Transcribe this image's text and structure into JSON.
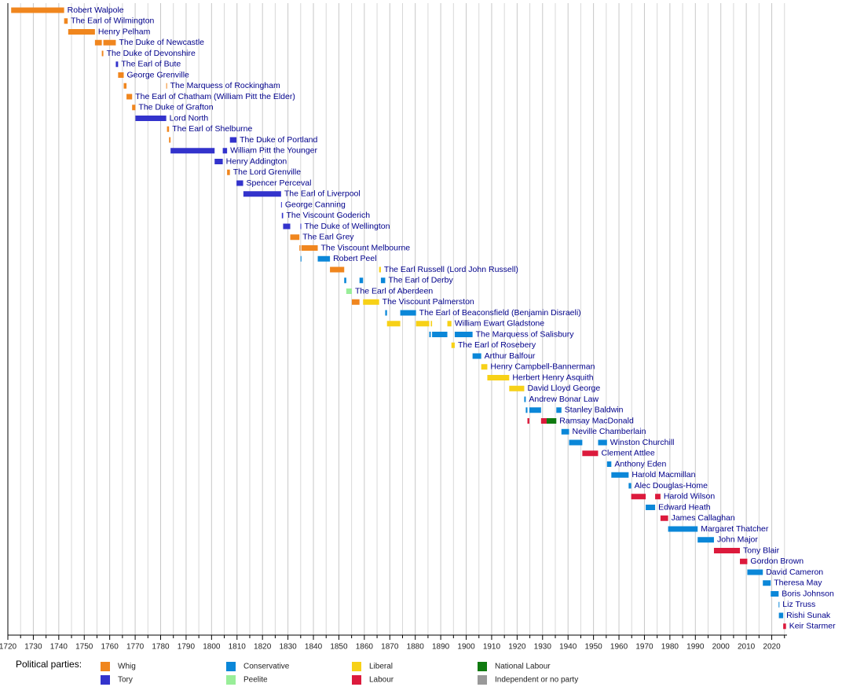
{
  "chart_data": {
    "type": "timeline",
    "xlim": [
      1720,
      2026
    ],
    "xticks": [
      1720,
      1730,
      1740,
      1750,
      1760,
      1770,
      1780,
      1790,
      1800,
      1810,
      1820,
      1830,
      1840,
      1850,
      1860,
      1870,
      1880,
      1890,
      1900,
      1910,
      1920,
      1930,
      1940,
      1950,
      1960,
      1970,
      1980,
      1990,
      2000,
      2010,
      2020
    ],
    "minor_xticks": [
      1725,
      1735,
      1745,
      1755,
      1765,
      1775,
      1785,
      1795,
      1805,
      1815,
      1825,
      1835,
      1845,
      1855,
      1865,
      1875,
      1885,
      1895,
      1905,
      1915,
      1925,
      1935,
      1945,
      1955,
      1965,
      1975,
      1985,
      1995,
      2005,
      2015,
      2025
    ],
    "grid": true,
    "legend_title": "Political parties:",
    "parties": [
      {
        "name": "Whig",
        "color": "#f0861e"
      },
      {
        "name": "Tory",
        "color": "#3333cc"
      },
      {
        "name": "Conservative",
        "color": "#0b87d8"
      },
      {
        "name": "Peelite",
        "color": "#99ee99"
      },
      {
        "name": "Liberal",
        "color": "#f7d117"
      },
      {
        "name": "Labour",
        "color": "#dc1a3c"
      },
      {
        "name": "National Labour",
        "color": "#0f7a0f"
      },
      {
        "name": "Independent or no party",
        "color": "#999999"
      }
    ],
    "series": [
      {
        "name": "Robert Walpole",
        "terms": [
          [
            1721.3,
            1742.1,
            "Whig"
          ]
        ]
      },
      {
        "name": "The Earl of Wilmington",
        "terms": [
          [
            1742.1,
            1743.5,
            "Whig"
          ]
        ]
      },
      {
        "name": "Henry Pelham",
        "terms": [
          [
            1743.7,
            1754.2,
            "Whig"
          ]
        ]
      },
      {
        "name": "The Duke of Newcastle",
        "terms": [
          [
            1754.2,
            1756.9,
            "Whig"
          ],
          [
            1757.5,
            1762.4,
            "Whig"
          ]
        ]
      },
      {
        "name": "The Duke of Devonshire",
        "terms": [
          [
            1756.9,
            1757.5,
            "Whig"
          ]
        ]
      },
      {
        "name": "The Earl of Bute",
        "terms": [
          [
            1762.4,
            1763.3,
            "Tory"
          ]
        ]
      },
      {
        "name": "George Grenville",
        "terms": [
          [
            1763.3,
            1765.5,
            "Whig"
          ]
        ]
      },
      {
        "name": "The Marquess of Rockingham",
        "terms": [
          [
            1765.5,
            1766.6,
            "Whig"
          ],
          [
            1782.2,
            1782.5,
            "Whig"
          ]
        ]
      },
      {
        "name": "The Earl of Chatham (William Pitt the Elder)",
        "terms": [
          [
            1766.6,
            1768.8,
            "Whig"
          ]
        ]
      },
      {
        "name": "The Duke of Grafton",
        "terms": [
          [
            1768.8,
            1770.1,
            "Whig"
          ]
        ]
      },
      {
        "name": "Lord North",
        "terms": [
          [
            1770.1,
            1782.2,
            "Tory"
          ]
        ]
      },
      {
        "name": "The Earl of Shelburne",
        "terms": [
          [
            1782.5,
            1783.3,
            "Whig"
          ]
        ]
      },
      {
        "name": "The Duke of Portland",
        "terms": [
          [
            1783.3,
            1783.9,
            "Whig"
          ],
          [
            1807.2,
            1809.8,
            "Tory"
          ]
        ]
      },
      {
        "name": "William Pitt the Younger",
        "terms": [
          [
            1783.9,
            1801.2,
            "Tory"
          ],
          [
            1804.4,
            1806.1,
            "Tory"
          ]
        ]
      },
      {
        "name": "Henry Addington",
        "terms": [
          [
            1801.2,
            1804.4,
            "Tory"
          ]
        ]
      },
      {
        "name": "The Lord Grenville",
        "terms": [
          [
            1806.1,
            1807.2,
            "Whig"
          ]
        ]
      },
      {
        "name": "Spencer Perceval",
        "terms": [
          [
            1809.8,
            1812.4,
            "Tory"
          ]
        ]
      },
      {
        "name": "The Earl of Liverpool",
        "terms": [
          [
            1812.5,
            1827.3,
            "Tory"
          ]
        ]
      },
      {
        "name": "George Canning",
        "terms": [
          [
            1827.3,
            1827.6,
            "Tory"
          ]
        ]
      },
      {
        "name": "The Viscount Goderich",
        "terms": [
          [
            1827.6,
            1828.1,
            "Tory"
          ]
        ]
      },
      {
        "name": "The Duke of Wellington",
        "terms": [
          [
            1828.1,
            1830.9,
            "Tory"
          ],
          [
            1834.9,
            1835.0,
            "Tory"
          ]
        ]
      },
      {
        "name": "The Earl Grey",
        "terms": [
          [
            1830.9,
            1834.5,
            "Whig"
          ]
        ]
      },
      {
        "name": "The Viscount Melbourne",
        "terms": [
          [
            1834.5,
            1834.9,
            "Whig"
          ],
          [
            1835.3,
            1841.7,
            "Whig"
          ]
        ]
      },
      {
        "name": "Robert Peel",
        "terms": [
          [
            1834.95,
            1835.3,
            "Conservative"
          ],
          [
            1841.7,
            1846.5,
            "Conservative"
          ]
        ]
      },
      {
        "name": "The Earl Russell (Lord John Russell)",
        "terms": [
          [
            1846.5,
            1852.1,
            "Whig"
          ],
          [
            1865.8,
            1866.5,
            "Liberal"
          ]
        ]
      },
      {
        "name": "The Earl of Derby",
        "terms": [
          [
            1852.1,
            1852.9,
            "Conservative"
          ],
          [
            1858.1,
            1859.5,
            "Conservative"
          ],
          [
            1866.5,
            1868.2,
            "Conservative"
          ]
        ]
      },
      {
        "name": "The Earl of Aberdeen",
        "terms": [
          [
            1852.9,
            1855.1,
            "Peelite"
          ]
        ]
      },
      {
        "name": "The Viscount Palmerston",
        "terms": [
          [
            1855.1,
            1858.1,
            "Whig"
          ],
          [
            1859.5,
            1865.8,
            "Liberal"
          ]
        ]
      },
      {
        "name": "The Earl of Beaconsfield (Benjamin Disraeli)",
        "terms": [
          [
            1868.2,
            1868.9,
            "Conservative"
          ],
          [
            1874.1,
            1880.3,
            "Conservative"
          ]
        ]
      },
      {
        "name": "William Ewart Gladstone",
        "terms": [
          [
            1868.9,
            1874.1,
            "Liberal"
          ],
          [
            1880.3,
            1885.5,
            "Liberal"
          ],
          [
            1886.1,
            1886.6,
            "Liberal"
          ],
          [
            1892.6,
            1894.2,
            "Liberal"
          ]
        ]
      },
      {
        "name": "The Marquess of Salisbury",
        "terms": [
          [
            1885.5,
            1886.1,
            "Conservative"
          ],
          [
            1886.6,
            1892.6,
            "Conservative"
          ],
          [
            1895.5,
            1902.5,
            "Conservative"
          ]
        ]
      },
      {
        "name": "The Earl of Rosebery",
        "terms": [
          [
            1894.2,
            1895.5,
            "Liberal"
          ]
        ]
      },
      {
        "name": "Arthur Balfour",
        "terms": [
          [
            1902.5,
            1905.9,
            "Conservative"
          ]
        ]
      },
      {
        "name": "Henry Campbell-Bannerman",
        "terms": [
          [
            1905.9,
            1908.3,
            "Liberal"
          ]
        ]
      },
      {
        "name": "Herbert Henry Asquith",
        "terms": [
          [
            1908.3,
            1916.9,
            "Liberal"
          ]
        ]
      },
      {
        "name": "David Lloyd George",
        "terms": [
          [
            1916.9,
            1922.8,
            "Liberal"
          ]
        ]
      },
      {
        "name": "Andrew Bonar Law",
        "terms": [
          [
            1922.8,
            1923.4,
            "Conservative"
          ]
        ]
      },
      {
        "name": "Stanley Baldwin",
        "terms": [
          [
            1923.4,
            1924.05,
            "Conservative"
          ],
          [
            1924.8,
            1929.4,
            "Conservative"
          ],
          [
            1935.4,
            1937.4,
            "Conservative"
          ]
        ]
      },
      {
        "name": "Ramsay MacDonald",
        "terms": [
          [
            1924.05,
            1924.8,
            "Labour"
          ],
          [
            1929.4,
            1931.6,
            "Labour"
          ],
          [
            1931.6,
            1935.4,
            "National Labour"
          ]
        ]
      },
      {
        "name": "Neville Chamberlain",
        "terms": [
          [
            1937.4,
            1940.4,
            "Conservative"
          ]
        ]
      },
      {
        "name": "Winston Churchill",
        "terms": [
          [
            1940.4,
            1945.6,
            "Conservative"
          ],
          [
            1951.8,
            1955.3,
            "Conservative"
          ]
        ]
      },
      {
        "name": "Clement Attlee",
        "terms": [
          [
            1945.6,
            1951.8,
            "Labour"
          ]
        ]
      },
      {
        "name": "Anthony Eden",
        "terms": [
          [
            1955.3,
            1957.0,
            "Conservative"
          ]
        ]
      },
      {
        "name": "Harold Macmillan",
        "terms": [
          [
            1957.0,
            1963.8,
            "Conservative"
          ]
        ]
      },
      {
        "name": "Alec Douglas-Home",
        "terms": [
          [
            1963.8,
            1964.8,
            "Conservative"
          ]
        ]
      },
      {
        "name": "Harold Wilson",
        "terms": [
          [
            1964.8,
            1970.5,
            "Labour"
          ],
          [
            1974.2,
            1976.3,
            "Labour"
          ]
        ]
      },
      {
        "name": "Edward Heath",
        "terms": [
          [
            1970.5,
            1974.2,
            "Conservative"
          ]
        ]
      },
      {
        "name": "James Callaghan",
        "terms": [
          [
            1976.3,
            1979.3,
            "Labour"
          ]
        ]
      },
      {
        "name": "Margaret Thatcher",
        "terms": [
          [
            1979.3,
            1990.9,
            "Conservative"
          ]
        ]
      },
      {
        "name": "John Major",
        "terms": [
          [
            1990.9,
            1997.3,
            "Conservative"
          ]
        ]
      },
      {
        "name": "Tony Blair",
        "terms": [
          [
            1997.3,
            2007.5,
            "Labour"
          ]
        ]
      },
      {
        "name": "Gordon Brown",
        "terms": [
          [
            2007.5,
            2010.4,
            "Labour"
          ]
        ]
      },
      {
        "name": "David Cameron",
        "terms": [
          [
            2010.4,
            2016.5,
            "Conservative"
          ]
        ]
      },
      {
        "name": "Theresa May",
        "terms": [
          [
            2016.5,
            2019.6,
            "Conservative"
          ]
        ]
      },
      {
        "name": "Boris Johnson",
        "terms": [
          [
            2019.6,
            2022.7,
            "Conservative"
          ]
        ]
      },
      {
        "name": "Liz Truss",
        "terms": [
          [
            2022.7,
            2022.8,
            "Conservative"
          ]
        ]
      },
      {
        "name": "Rishi Sunak",
        "terms": [
          [
            2022.8,
            2024.5,
            "Conservative"
          ]
        ]
      },
      {
        "name": "Keir Starmer",
        "terms": [
          [
            2024.5,
            2025.6,
            "Labour"
          ]
        ]
      }
    ]
  }
}
